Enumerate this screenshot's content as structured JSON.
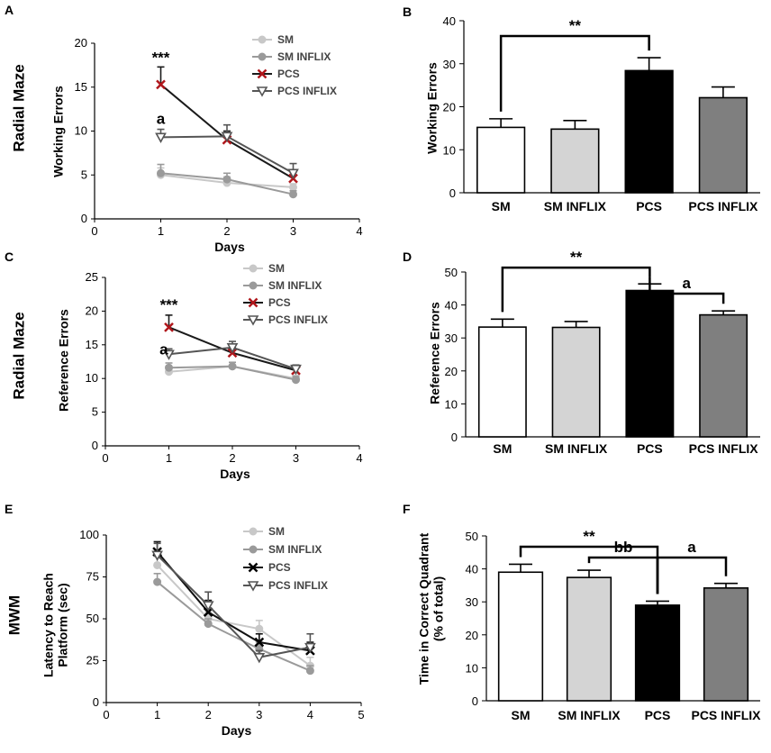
{
  "chart_data": [
    {
      "id": "A",
      "type": "line",
      "panel_label": "A",
      "row_label": "Radial Maze",
      "ylabel": "Working Errors",
      "xlabel": "Days",
      "xlim": [
        0,
        4
      ],
      "ylim": [
        0,
        20
      ],
      "xticks": [
        "0",
        "1",
        "2",
        "3",
        "4"
      ],
      "yticks": [
        "0",
        "5",
        "10",
        "15",
        "20"
      ],
      "x": [
        1,
        2,
        3
      ],
      "series": [
        {
          "name": "SM",
          "values": [
            5.0,
            4.1,
            3.6
          ],
          "errors": [
            0.8,
            0.7,
            0.4
          ],
          "color": "#c8c8c8",
          "marker": "circle"
        },
        {
          "name": "SM INFLIX",
          "values": [
            5.2,
            4.5,
            2.8
          ],
          "errors": [
            1.0,
            0.7,
            0.4
          ],
          "color": "#9a9a9a",
          "marker": "circle"
        },
        {
          "name": "PCS",
          "values": [
            15.3,
            9.0,
            4.6
          ],
          "errors": [
            2.0,
            1.0,
            0.9
          ],
          "color": "#1a1a1a",
          "marker": "x"
        },
        {
          "name": "PCS INFLIX",
          "values": [
            9.3,
            9.4,
            5.2
          ],
          "errors": [
            0.9,
            1.3,
            1.1
          ],
          "color": "#555555",
          "marker": "triangle"
        }
      ],
      "annotations": [
        {
          "x": 1,
          "y": 17.8,
          "text": "***"
        },
        {
          "x": 1,
          "y": 10.8,
          "text": "a"
        }
      ]
    },
    {
      "id": "B",
      "type": "bar",
      "panel_label": "B",
      "ylabel": "Working Errors",
      "ylim": [
        0,
        40
      ],
      "yticks": [
        "0",
        "10",
        "20",
        "30",
        "40"
      ],
      "categories": [
        "SM",
        "SM INFLIX",
        "PCS",
        "PCS INFLIX"
      ],
      "values": [
        15.2,
        14.8,
        28.4,
        22.1
      ],
      "errors": [
        2.0,
        2.0,
        3.0,
        2.5
      ],
      "colors": [
        "#ffffff",
        "#d4d4d4",
        "#000000",
        "#7f7f7f"
      ],
      "brackets": [
        {
          "from": 0,
          "to": 2,
          "text": "**"
        }
      ]
    },
    {
      "id": "C",
      "type": "line",
      "panel_label": "C",
      "row_label": "Radial Maze",
      "ylabel": "Reference Errors",
      "xlabel": "Days",
      "xlim": [
        0,
        4
      ],
      "ylim": [
        0,
        25
      ],
      "xticks": [
        "0",
        "1",
        "2",
        "3",
        "4"
      ],
      "yticks": [
        "0",
        "5",
        "10",
        "15",
        "20",
        "25"
      ],
      "x": [
        1,
        2,
        3
      ],
      "series": [
        {
          "name": "SM",
          "values": [
            11.0,
            11.8,
            10.0
          ],
          "errors": [
            0.6,
            0.6,
            0.5
          ],
          "color": "#c8c8c8",
          "marker": "circle"
        },
        {
          "name": "SM INFLIX",
          "values": [
            11.6,
            11.8,
            9.8
          ],
          "errors": [
            0.7,
            0.6,
            0.5
          ],
          "color": "#9a9a9a",
          "marker": "circle"
        },
        {
          "name": "PCS",
          "values": [
            17.6,
            13.8,
            11.2
          ],
          "errors": [
            1.8,
            0.9,
            0.6
          ],
          "color": "#1a1a1a",
          "marker": "x"
        },
        {
          "name": "PCS INFLIX",
          "values": [
            13.6,
            14.6,
            11.4
          ],
          "errors": [
            0.8,
            0.9,
            0.6
          ],
          "color": "#555555",
          "marker": "triangle"
        }
      ],
      "annotations": [
        {
          "x": 1,
          "y": 20.2,
          "text": "***"
        },
        {
          "x": 0.92,
          "y": 13.6,
          "text": "a"
        }
      ]
    },
    {
      "id": "D",
      "type": "bar",
      "panel_label": "D",
      "ylabel": "Reference Errors",
      "ylim": [
        0,
        50
      ],
      "yticks": [
        "0",
        "10",
        "20",
        "30",
        "40",
        "50"
      ],
      "categories": [
        "SM",
        "SM INFLIX",
        "PCS",
        "PCS INFLIX"
      ],
      "values": [
        33.3,
        33.2,
        44.4,
        37.0
      ],
      "errors": [
        2.4,
        1.8,
        2.0,
        1.2
      ],
      "colors": [
        "#ffffff",
        "#d4d4d4",
        "#000000",
        "#7f7f7f"
      ],
      "brackets": [
        {
          "from": 0,
          "to": 2,
          "text": "**"
        },
        {
          "from": 2,
          "to": 3,
          "text": "a"
        }
      ]
    },
    {
      "id": "E",
      "type": "line",
      "panel_label": "E",
      "row_label": "MWM",
      "ylabel": "Latency to Reach\nPlatform (sec)",
      "xlabel": "Days",
      "xlim": [
        0,
        5
      ],
      "ylim": [
        0,
        100
      ],
      "xticks": [
        "0",
        "1",
        "2",
        "3",
        "4",
        "5"
      ],
      "yticks": [
        "0",
        "25",
        "50",
        "75",
        "100"
      ],
      "x": [
        1,
        2,
        3,
        4
      ],
      "series": [
        {
          "name": "SM",
          "values": [
            82,
            50,
            44,
            22
          ],
          "errors": [
            5,
            4,
            5,
            5
          ],
          "color": "#c8c8c8",
          "marker": "circle"
        },
        {
          "name": "SM INFLIX",
          "values": [
            72,
            47,
            32,
            19
          ],
          "errors": [
            5,
            3,
            4,
            3
          ],
          "color": "#9a9a9a",
          "marker": "circle"
        },
        {
          "name": "PCS",
          "values": [
            90,
            54,
            36,
            31
          ],
          "errors": [
            6,
            7,
            5,
            5
          ],
          "color": "#111111",
          "marker": "x"
        },
        {
          "name": "PCS INFLIX",
          "values": [
            88,
            58,
            27,
            33
          ],
          "errors": [
            7,
            8,
            4,
            8
          ],
          "color": "#555555",
          "marker": "triangle"
        }
      ],
      "annotations": []
    },
    {
      "id": "F",
      "type": "bar",
      "panel_label": "F",
      "ylabel": "Time in Correct Quadrant\n(% of total)",
      "ylim": [
        0,
        50
      ],
      "yticks": [
        "0",
        "10",
        "20",
        "30",
        "40",
        "50"
      ],
      "categories": [
        "SM",
        "SM INFLIX",
        "PCS",
        "PCS INFLIX"
      ],
      "values": [
        39.0,
        37.4,
        29.0,
        34.2
      ],
      "errors": [
        2.4,
        2.2,
        1.2,
        1.4
      ],
      "colors": [
        "#ffffff",
        "#d4d4d4",
        "#000000",
        "#7f7f7f"
      ],
      "brackets": [
        {
          "from": 0,
          "to": 2,
          "text": "**"
        },
        {
          "from": 1,
          "to": 2,
          "text": "bb"
        },
        {
          "from": 2,
          "to": 3,
          "text": "a"
        }
      ]
    }
  ]
}
